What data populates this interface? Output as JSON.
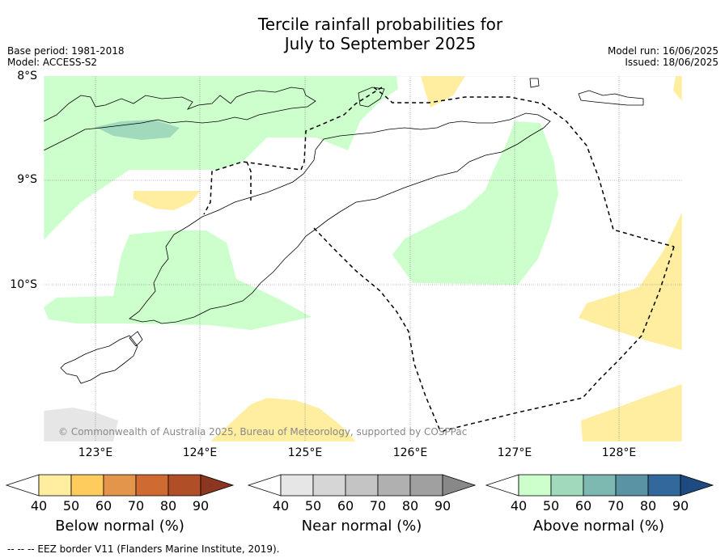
{
  "title_line1": "Tercile rainfall probabilities for",
  "title_line2": "July to September 2025",
  "meta": {
    "base_period": "Base period: 1981-2018",
    "model": "Model: ACCESS-S2",
    "model_run": "Model run: 16/06/2025",
    "issued": "Issued: 18/06/2025"
  },
  "axes": {
    "lat_labels": [
      "8°S",
      "9°S",
      "10°S"
    ],
    "lon_labels": [
      "123°E",
      "124°E",
      "125°E",
      "126°E",
      "127°E",
      "128°E"
    ]
  },
  "copyright": "© Commonwealth of Australia 2025, Bureau of Meteorology, supported by COSPPac",
  "colorbars": [
    {
      "title": "Below normal (%)",
      "ticks": [
        "40",
        "50",
        "60",
        "70",
        "80",
        "90"
      ],
      "colors": [
        "#ffffff",
        "#ffeda0",
        "#fecc5c",
        "#e3964b",
        "#cf6a33",
        "#b04e28",
        "#8c3520"
      ]
    },
    {
      "title": "Near normal (%)",
      "ticks": [
        "40",
        "50",
        "60",
        "70",
        "80",
        "90"
      ],
      "colors": [
        "#ffffff",
        "#e6e6e6",
        "#d6d6d6",
        "#c4c4c4",
        "#b0b0b0",
        "#a0a0a0",
        "#888888"
      ]
    },
    {
      "title": "Above normal (%)",
      "ticks": [
        "40",
        "50",
        "60",
        "70",
        "80",
        "90"
      ],
      "colors": [
        "#ffffff",
        "#ccffcc",
        "#a1d9bd",
        "#7db8b1",
        "#5a93a3",
        "#32689b",
        "#1d4a80"
      ]
    }
  ],
  "footer": "--  --  -- EEZ border V11 (Flanders Marine Institute, 2019)."
}
